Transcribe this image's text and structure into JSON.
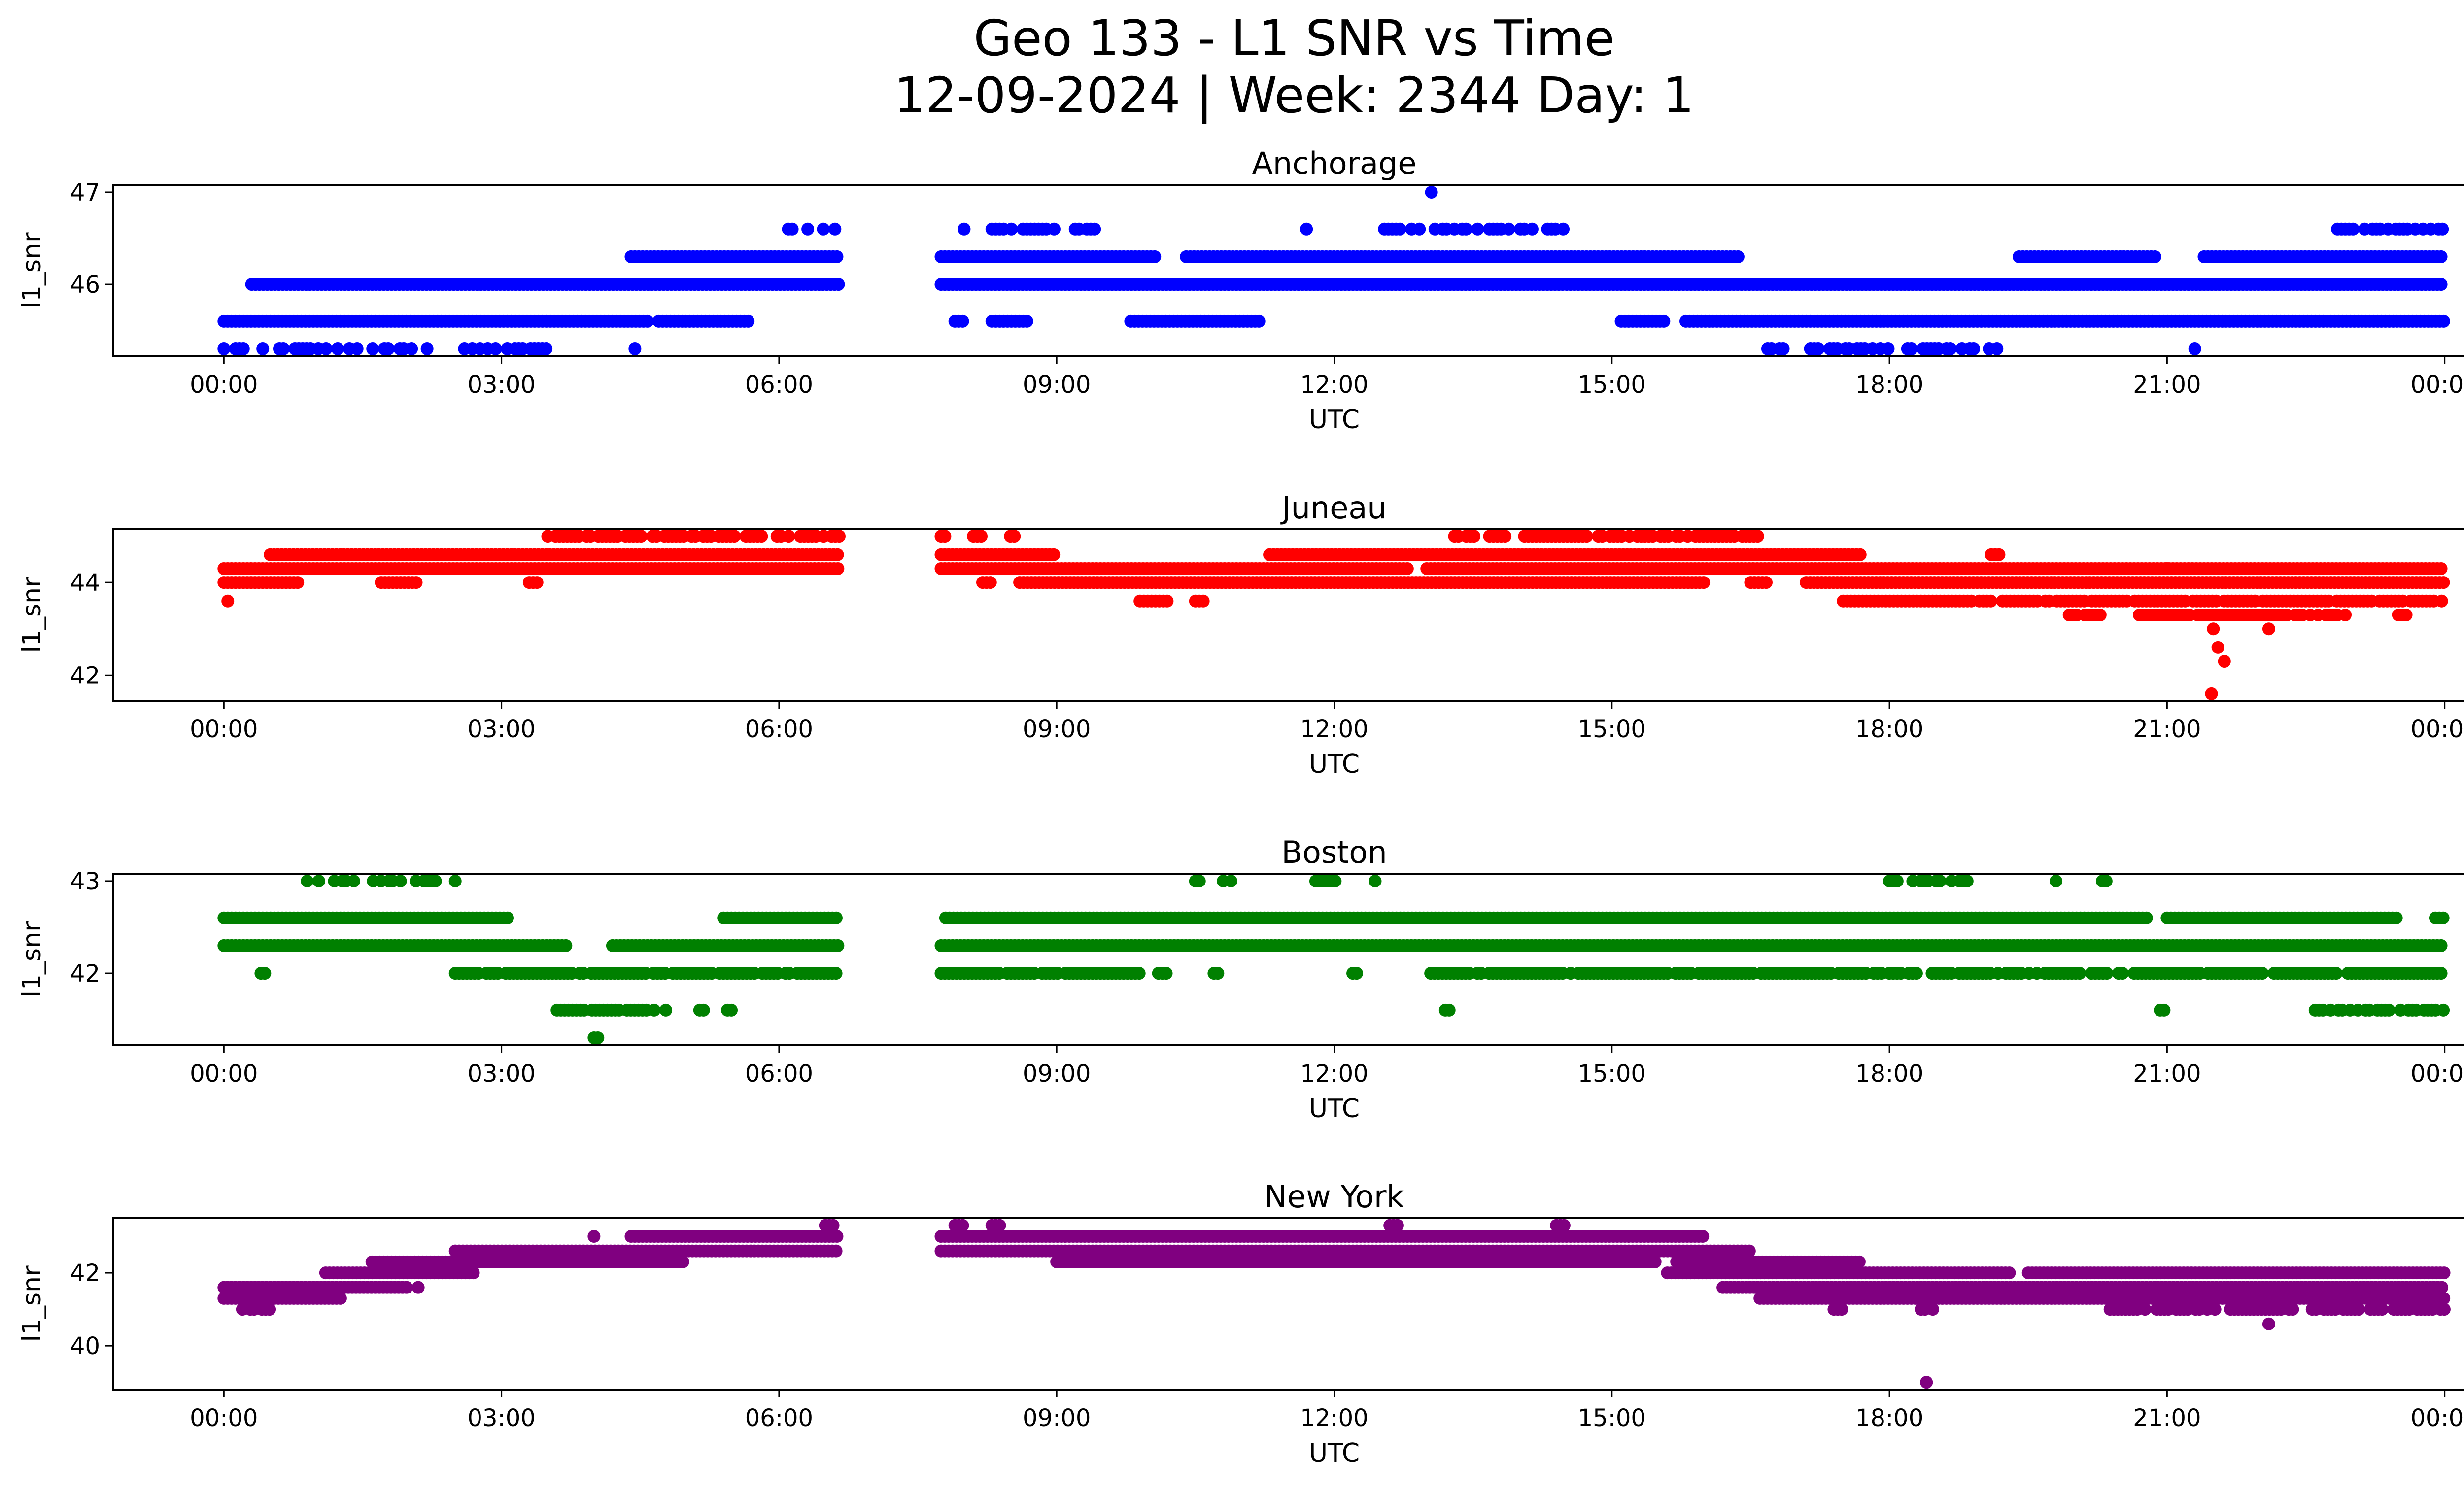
{
  "chart_data": {
    "type": "scatter",
    "title": "Geo 133 - L1 SNR vs Time",
    "subtitle": "12-09-2024 | Week: 2344 Day: 1",
    "xlabel": "UTC",
    "ylabel": "l1_snr",
    "x_ticks": [
      "00:00",
      "03:00",
      "06:00",
      "09:00",
      "12:00",
      "15:00",
      "18:00",
      "21:00",
      "00:00"
    ],
    "x_range_hours": [
      -1.2,
      25.2
    ],
    "data_gap_hours": [
      6.65,
      7.75
    ],
    "panels": [
      {
        "name": "Anchorage",
        "color": "#0000ff",
        "ylim": [
          45.22,
          47.08
        ],
        "y_ticks": [
          46,
          47
        ],
        "levels": [
          {
            "value": 45.3,
            "segments": [
              [
                0,
                0.45
              ],
              [
                0.6,
                2.2
              ],
              [
                2.6,
                3.5
              ],
              [
                4.4,
                4.45
              ],
              [
                16.6,
                19.2
              ],
              [
                21.3,
                21.3
              ]
            ],
            "density": 0.5
          },
          {
            "value": 45.6,
            "segments": [
              [
                0,
                4.6
              ],
              [
                4.7,
                5.7
              ],
              [
                7.9,
                8.0
              ],
              [
                8.3,
                8.7
              ],
              [
                9.8,
                11.2
              ],
              [
                15.1,
                15.6
              ],
              [
                15.8,
                24.0
              ]
            ],
            "density": 1
          },
          {
            "value": 46.0,
            "segments": [
              [
                0.3,
                6.65
              ],
              [
                7.75,
                24.0
              ]
            ],
            "density": 1
          },
          {
            "value": 46.3,
            "segments": [
              [
                4.4,
                6.65
              ],
              [
                7.75,
                10.1
              ],
              [
                10.4,
                16.4
              ],
              [
                19.4,
                20.9
              ],
              [
                21.4,
                24.0
              ]
            ],
            "density": 1
          },
          {
            "value": 46.6,
            "segments": [
              [
                6.1,
                6.65
              ],
              [
                8.0,
                8.1
              ],
              [
                8.3,
                9.0
              ],
              [
                9.2,
                9.5
              ],
              [
                11.7,
                11.8
              ],
              [
                12.5,
                14.5
              ],
              [
                22.8,
                24.0
              ]
            ],
            "density": 0.6
          }
        ],
        "outliers": [
          {
            "t": 13.05,
            "v": 47.0
          }
        ]
      },
      {
        "name": "Juneau",
        "color": "#ff0000",
        "ylim": [
          41.45,
          45.15
        ],
        "y_ticks": [
          42,
          44
        ],
        "levels": [
          {
            "value": 43.6,
            "segments": [
              [
                0,
                0.05
              ],
              [
                9.9,
                10.2
              ],
              [
                10.5,
                10.6
              ],
              [
                17.5,
                24.0
              ]
            ],
            "density": 0.9
          },
          {
            "value": 43.3,
            "segments": [
              [
                19.9,
                20.3
              ],
              [
                20.7,
                23.0
              ],
              [
                23.5,
                23.6
              ]
            ],
            "density": 0.9
          },
          {
            "value": 44.0,
            "segments": [
              [
                0,
                0.8
              ],
              [
                1.7,
                2.1
              ],
              [
                3.3,
                3.4
              ],
              [
                8.2,
                8.3
              ],
              [
                8.6,
                16.0
              ],
              [
                16.5,
                16.7
              ],
              [
                17.1,
                24.0
              ]
            ],
            "density": 1
          },
          {
            "value": 44.3,
            "segments": [
              [
                0,
                6.65
              ],
              [
                7.75,
                12.8
              ],
              [
                13.0,
                24.0
              ]
            ],
            "density": 1
          },
          {
            "value": 44.6,
            "segments": [
              [
                0.5,
                6.65
              ],
              [
                7.75,
                9.0
              ],
              [
                11.3,
                17.7
              ],
              [
                19.1,
                19.2
              ]
            ],
            "density": 1
          },
          {
            "value": 45.0,
            "segments": [
              [
                3.5,
                6.65
              ],
              [
                7.75,
                7.9
              ],
              [
                8.1,
                8.2
              ],
              [
                8.5,
                8.6
              ],
              [
                13.3,
                16.6
              ]
            ],
            "density": 0.8
          }
        ],
        "outliers": [
          {
            "t": 21.5,
            "v": 43.0
          },
          {
            "t": 21.55,
            "v": 42.6
          },
          {
            "t": 21.62,
            "v": 42.3
          },
          {
            "t": 21.48,
            "v": 41.6
          },
          {
            "t": 22.1,
            "v": 43.0
          },
          {
            "t": 21.0,
            "v": 44.3
          }
        ]
      },
      {
        "name": "Boston",
        "color": "#008000",
        "ylim": [
          41.22,
          43.08
        ],
        "y_ticks": [
          42,
          43
        ],
        "levels": [
          {
            "value": 41.3,
            "segments": [
              [
                4.0,
                4.05
              ]
            ],
            "density": 1
          },
          {
            "value": 41.6,
            "segments": [
              [
                3.6,
                4.8
              ],
              [
                5.1,
                5.2
              ],
              [
                5.4,
                5.5
              ],
              [
                13.2,
                13.25
              ],
              [
                20.8,
                21.0
              ],
              [
                22.6,
                24.0
              ]
            ],
            "density": 0.7
          },
          {
            "value": 42.0,
            "segments": [
              [
                0.4,
                0.45
              ],
              [
                2.5,
                6.65
              ],
              [
                7.75,
                9.9
              ],
              [
                10.1,
                10.2
              ],
              [
                10.7,
                10.75
              ],
              [
                12.2,
                12.25
              ],
              [
                13.0,
                24.0
              ]
            ],
            "density": 0.9
          },
          {
            "value": 42.3,
            "segments": [
              [
                0,
                3.7
              ],
              [
                4.2,
                6.65
              ],
              [
                7.75,
                24.0
              ]
            ],
            "density": 1
          },
          {
            "value": 42.6,
            "segments": [
              [
                0,
                3.1
              ],
              [
                5.4,
                6.65
              ],
              [
                7.8,
                20.8
              ],
              [
                21.0,
                23.5
              ],
              [
                23.9,
                24.0
              ]
            ],
            "density": 1
          },
          {
            "value": 43.0,
            "segments": [
              [
                0.9,
                2.3
              ],
              [
                2.5,
                2.55
              ],
              [
                10.5,
                10.55
              ],
              [
                10.8,
                11.0
              ],
              [
                11.2,
                11.25
              ],
              [
                11.8,
                12.1
              ],
              [
                12.4,
                12.45
              ],
              [
                14.5,
                14.55
              ],
              [
                18.0,
                19.0
              ],
              [
                19.8,
                19.85
              ],
              [
                20.3,
                20.35
              ]
            ],
            "density": 0.6
          }
        ],
        "outliers": []
      },
      {
        "name": "New York",
        "color": "#800080",
        "ylim": [
          38.8,
          43.5
        ],
        "y_ticks": [
          40,
          42
        ],
        "levels": [
          {
            "value": 41.0,
            "segments": [
              [
                0.2,
                0.5
              ],
              [
                17.4,
                17.5
              ],
              [
                18.3,
                18.5
              ],
              [
                20.3,
                24.0
              ]
            ],
            "density": 0.7
          },
          {
            "value": 41.3,
            "segments": [
              [
                0,
                1.3
              ],
              [
                16.6,
                24.0
              ]
            ],
            "density": 1
          },
          {
            "value": 41.6,
            "segments": [
              [
                0,
                2.0
              ],
              [
                16.2,
                24.0
              ]
            ],
            "density": 1
          },
          {
            "value": 42.0,
            "segments": [
              [
                1.1,
                2.7
              ],
              [
                15.6,
                19.3
              ],
              [
                19.5,
                24.0
              ]
            ],
            "density": 1
          },
          {
            "value": 42.3,
            "segments": [
              [
                1.6,
                5.0
              ],
              [
                9.0,
                15.5
              ],
              [
                15.7,
                17.7
              ]
            ],
            "density": 1
          },
          {
            "value": 42.6,
            "segments": [
              [
                2.5,
                6.65
              ],
              [
                7.75,
                16.5
              ]
            ],
            "density": 1
          },
          {
            "value": 43.0,
            "segments": [
              [
                4.4,
                6.65
              ],
              [
                7.75,
                16.0
              ]
            ],
            "density": 1
          },
          {
            "value": 43.3,
            "segments": [
              [
                6.5,
                6.6
              ],
              [
                7.9,
                8.0
              ],
              [
                8.3,
                8.4
              ],
              [
                12.6,
                12.7
              ],
              [
                14.4,
                14.5
              ]
            ],
            "density": 1
          }
        ],
        "outliers": [
          {
            "t": 18.4,
            "v": 39.0
          },
          {
            "t": 22.1,
            "v": 40.6
          },
          {
            "t": 4.0,
            "v": 43.0
          },
          {
            "t": 2.1,
            "v": 41.6
          }
        ]
      }
    ]
  }
}
